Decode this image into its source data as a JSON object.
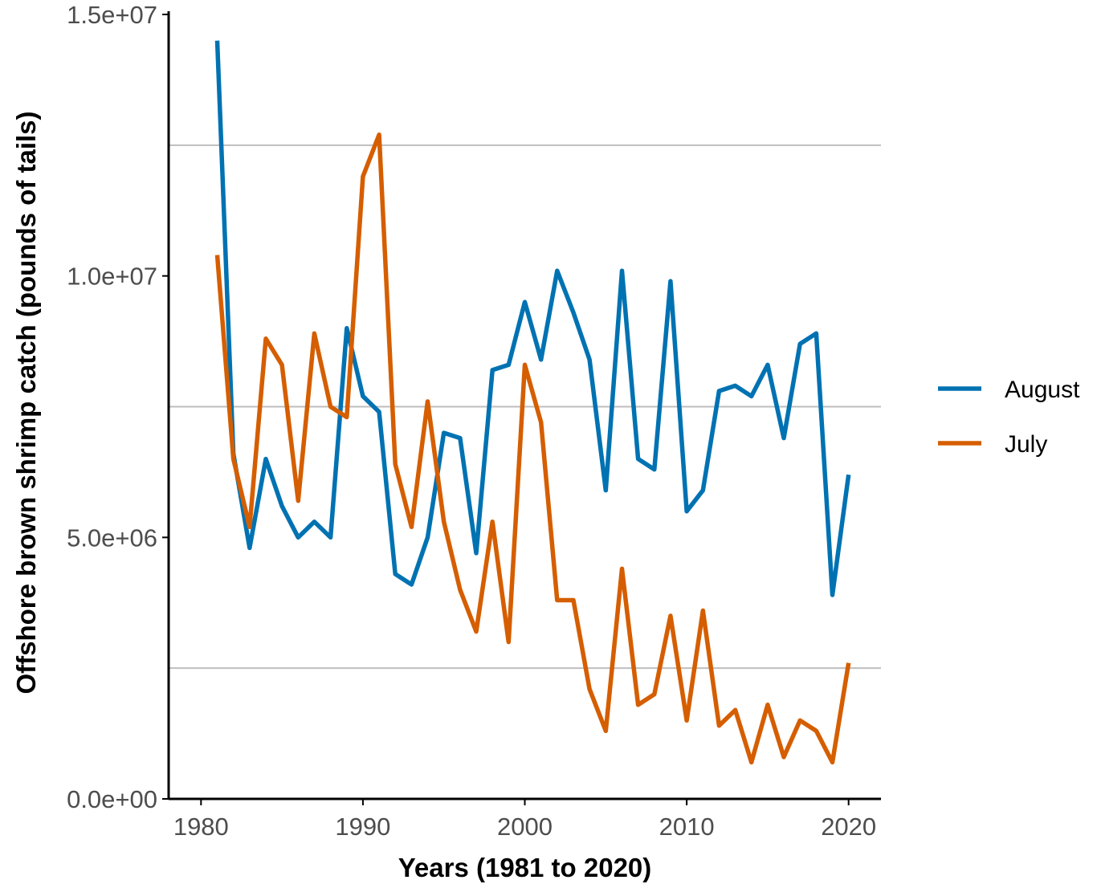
{
  "chart_data": {
    "type": "line",
    "title": "",
    "xlabel": "Years (1981 to 2020)",
    "ylabel": "Offshore brown shrimp catch (pounds of tails)",
    "xlim": [
      1977.95,
      1982.05
    ],
    "x": [
      1981,
      1982,
      1983,
      1984,
      1985,
      1986,
      1987,
      1988,
      1989,
      1990,
      1991,
      1992,
      1993,
      1994,
      1995,
      1996,
      1997,
      1998,
      1999,
      2000,
      2001,
      2002,
      2003,
      2004,
      2005,
      2006,
      2007,
      2008,
      2009,
      2010,
      2011,
      2012,
      2013,
      2014,
      2015,
      2016,
      2017,
      2018,
      2019,
      2020
    ],
    "ylim": [
      0,
      15000000
    ],
    "x_ticks": [
      1980,
      1990,
      2000,
      2010,
      2020
    ],
    "x_tick_labels": [
      "1980",
      "1990",
      "2000",
      "2010",
      "2020"
    ],
    "y_ticks": [
      0,
      5000000,
      10000000,
      15000000
    ],
    "y_tick_labels": [
      "0.0e+00",
      "5.0e+06",
      "1.0e+07",
      "1.5e+07"
    ],
    "grid": "horizontal",
    "legend_position": "right",
    "series": [
      {
        "name": "August",
        "color": "#0072B2",
        "values": [
          14500000,
          6600000,
          4800000,
          6500000,
          5600000,
          5000000,
          5300000,
          5000000,
          9000000,
          7700000,
          7400000,
          4300000,
          4100000,
          5000000,
          7000000,
          6900000,
          4700000,
          8200000,
          8300000,
          9500000,
          8400000,
          10100000,
          9300000,
          8400000,
          5900000,
          10100000,
          6500000,
          6300000,
          9900000,
          5500000,
          5900000,
          7800000,
          7900000,
          7700000,
          8300000,
          6900000,
          8700000,
          8900000,
          3900000,
          6200000
        ]
      },
      {
        "name": "July",
        "color": "#D55E00",
        "values": [
          10400000,
          6500000,
          5200000,
          8800000,
          8300000,
          5700000,
          8900000,
          7500000,
          7300000,
          11900000,
          12700000,
          6400000,
          5200000,
          7600000,
          5300000,
          4000000,
          3200000,
          5300000,
          3000000,
          8300000,
          7200000,
          3800000,
          3800000,
          2100000,
          1300000,
          4400000,
          1800000,
          2000000,
          3500000,
          1500000,
          3600000,
          1400000,
          1700000,
          700000,
          1800000,
          800000,
          1500000,
          1300000,
          700000,
          2600000
        ]
      }
    ]
  }
}
